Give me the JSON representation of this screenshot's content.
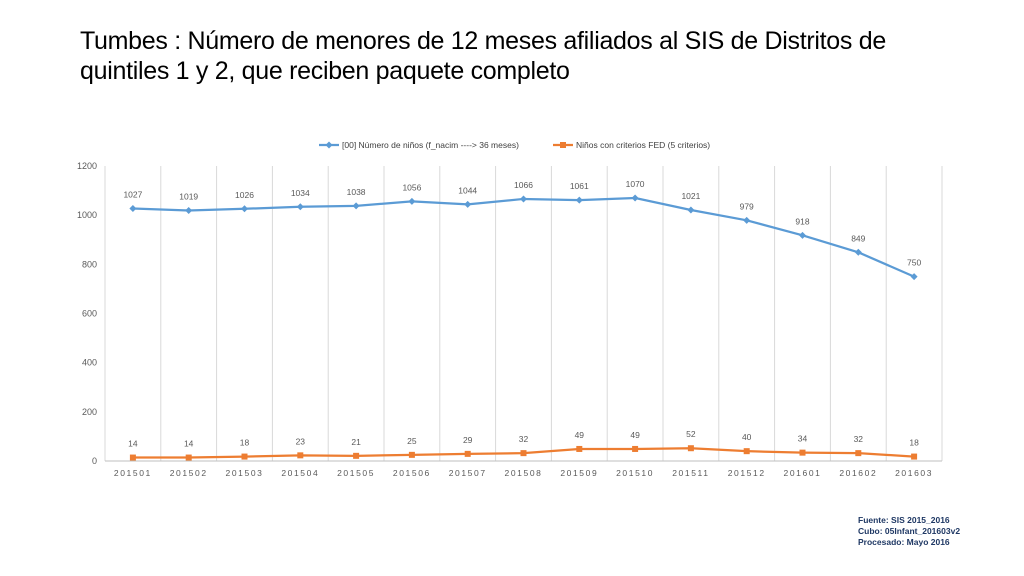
{
  "title": "Tumbes : Número de menores de 12 meses afiliados al SIS de Distritos de quintiles 1 y 2, que reciben paquete completo",
  "source": {
    "line1": "Fuente: SIS 2015_2016",
    "line2": "Cubo: 05Infant_201603v2",
    "line3": "Procesado: Mayo 2016"
  },
  "chart_data": {
    "type": "line",
    "categories": [
      "201501",
      "201502",
      "201503",
      "201504",
      "201505",
      "201506",
      "201507",
      "201508",
      "201509",
      "201510",
      "201511",
      "201512",
      "201601",
      "201602",
      "201603"
    ],
    "series": [
      {
        "name": "[00] Número de niños (f_nacim ----> 36 meses)",
        "color": "#5b9bd5",
        "marker": "diamond",
        "values": [
          1027,
          1019,
          1026,
          1034,
          1038,
          1056,
          1044,
          1066,
          1061,
          1070,
          1021,
          979,
          918,
          849,
          750
        ]
      },
      {
        "name": "Niños con criterios FED (5 criterios)",
        "color": "#ed7d31",
        "marker": "square",
        "values": [
          14,
          14,
          18,
          23,
          21,
          25,
          29,
          32,
          49,
          49,
          52,
          40,
          34,
          32,
          18
        ]
      }
    ],
    "ylim": [
      0,
      1200
    ],
    "yticks": [
      0,
      200,
      400,
      600,
      800,
      1000,
      1200
    ],
    "grid": "vertical",
    "legend_position": "top",
    "data_labels": true
  }
}
